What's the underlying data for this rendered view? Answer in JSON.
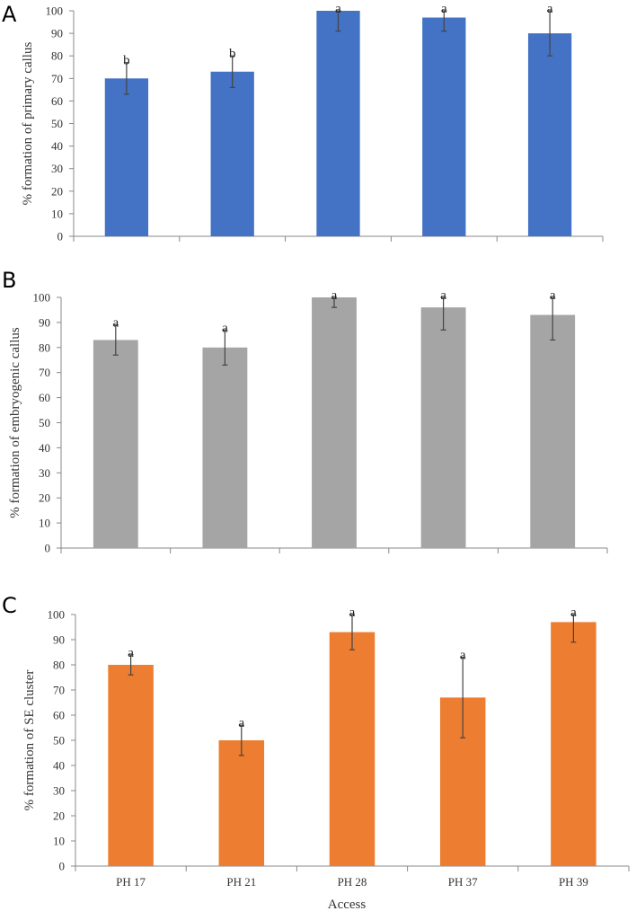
{
  "chart_data": [
    {
      "panel": "A",
      "type": "bar",
      "ylabel": "% formation of primary callus",
      "ylim": [
        0,
        100
      ],
      "ytick_step": 10,
      "color": "#4472C4",
      "categories": [
        "PH 17",
        "PH 21",
        "PH 28",
        "PH 37",
        "PH 39"
      ],
      "show_category_labels": false,
      "values": [
        70,
        73,
        100,
        97,
        90
      ],
      "errors": [
        7,
        7,
        9,
        6,
        10
      ],
      "significance": [
        "b",
        "b",
        "a",
        "a",
        "a"
      ]
    },
    {
      "panel": "B",
      "type": "bar",
      "ylabel": "% formation of embryogenic callus",
      "ylim": [
        0,
        100
      ],
      "ytick_step": 10,
      "color": "#A5A5A5",
      "categories": [
        "PH 17",
        "PH 21",
        "PH 28",
        "PH 37",
        "PH 39"
      ],
      "show_category_labels": false,
      "values": [
        83,
        80,
        100,
        96,
        93
      ],
      "errors": [
        6,
        7,
        4,
        9,
        10
      ],
      "significance": [
        "a",
        "a",
        "a",
        "a",
        "a"
      ]
    },
    {
      "panel": "C",
      "type": "bar",
      "ylabel": "% formation of SE cluster",
      "xlabel": "Access",
      "ylim": [
        0,
        100
      ],
      "ytick_step": 10,
      "color": "#ED7D31",
      "categories": [
        "PH 17",
        "PH 21",
        "PH 28",
        "PH 37",
        "PH 39"
      ],
      "show_category_labels": true,
      "values": [
        80,
        50,
        93,
        67,
        97
      ],
      "errors": [
        4,
        6,
        7,
        16,
        8
      ],
      "significance": [
        "a",
        "a",
        "a",
        "a",
        "a"
      ]
    }
  ]
}
